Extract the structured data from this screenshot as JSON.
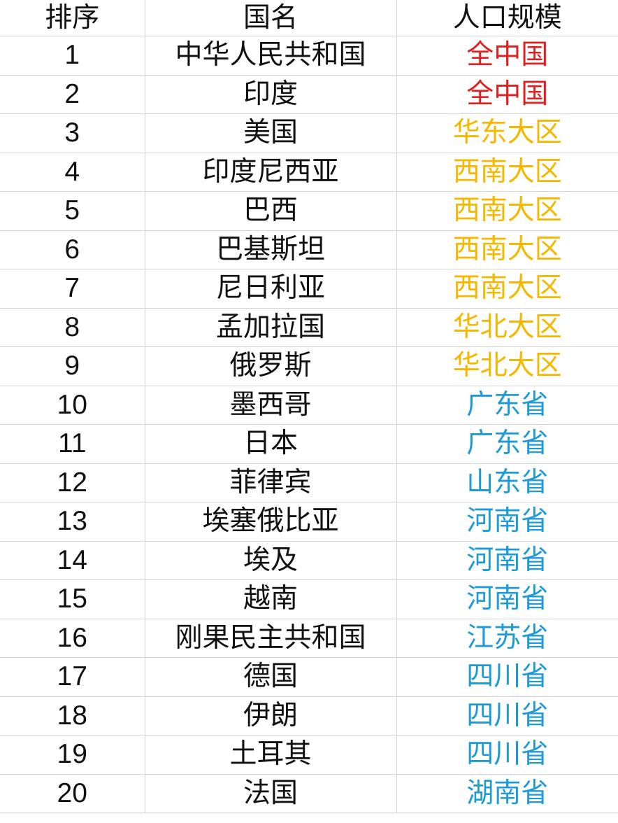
{
  "headers": [
    "排序",
    "国名",
    "人口规模"
  ],
  "colors": {
    "national": "#e02020",
    "region": "#f5b800",
    "province": "#1e9ad6"
  },
  "rows": [
    {
      "rank": "1",
      "country": "中华人民共和国",
      "scale": "全中国",
      "level": "national"
    },
    {
      "rank": "2",
      "country": "印度",
      "scale": "全中国",
      "level": "national"
    },
    {
      "rank": "3",
      "country": "美国",
      "scale": "华东大区",
      "level": "region"
    },
    {
      "rank": "4",
      "country": "印度尼西亚",
      "scale": "西南大区",
      "level": "region"
    },
    {
      "rank": "5",
      "country": "巴西",
      "scale": "西南大区",
      "level": "region"
    },
    {
      "rank": "6",
      "country": "巴基斯坦",
      "scale": "西南大区",
      "level": "region"
    },
    {
      "rank": "7",
      "country": "尼日利亚",
      "scale": "西南大区",
      "level": "region"
    },
    {
      "rank": "8",
      "country": "孟加拉国",
      "scale": "华北大区",
      "level": "region"
    },
    {
      "rank": "9",
      "country": "俄罗斯",
      "scale": "华北大区",
      "level": "region"
    },
    {
      "rank": "10",
      "country": "墨西哥",
      "scale": "广东省",
      "level": "province"
    },
    {
      "rank": "11",
      "country": "日本",
      "scale": "广东省",
      "level": "province"
    },
    {
      "rank": "12",
      "country": "菲律宾",
      "scale": "山东省",
      "level": "province"
    },
    {
      "rank": "13",
      "country": "埃塞俄比亚",
      "scale": "河南省",
      "level": "province"
    },
    {
      "rank": "14",
      "country": "埃及",
      "scale": "河南省",
      "level": "province"
    },
    {
      "rank": "15",
      "country": "越南",
      "scale": "河南省",
      "level": "province"
    },
    {
      "rank": "16",
      "country": "刚果民主共和国",
      "scale": "江苏省",
      "level": "province"
    },
    {
      "rank": "17",
      "country": "德国",
      "scale": "四川省",
      "level": "province"
    },
    {
      "rank": "18",
      "country": "伊朗",
      "scale": "四川省",
      "level": "province"
    },
    {
      "rank": "19",
      "country": "土耳其",
      "scale": "四川省",
      "level": "province"
    },
    {
      "rank": "20",
      "country": "法国",
      "scale": "湖南省",
      "level": "province"
    }
  ]
}
